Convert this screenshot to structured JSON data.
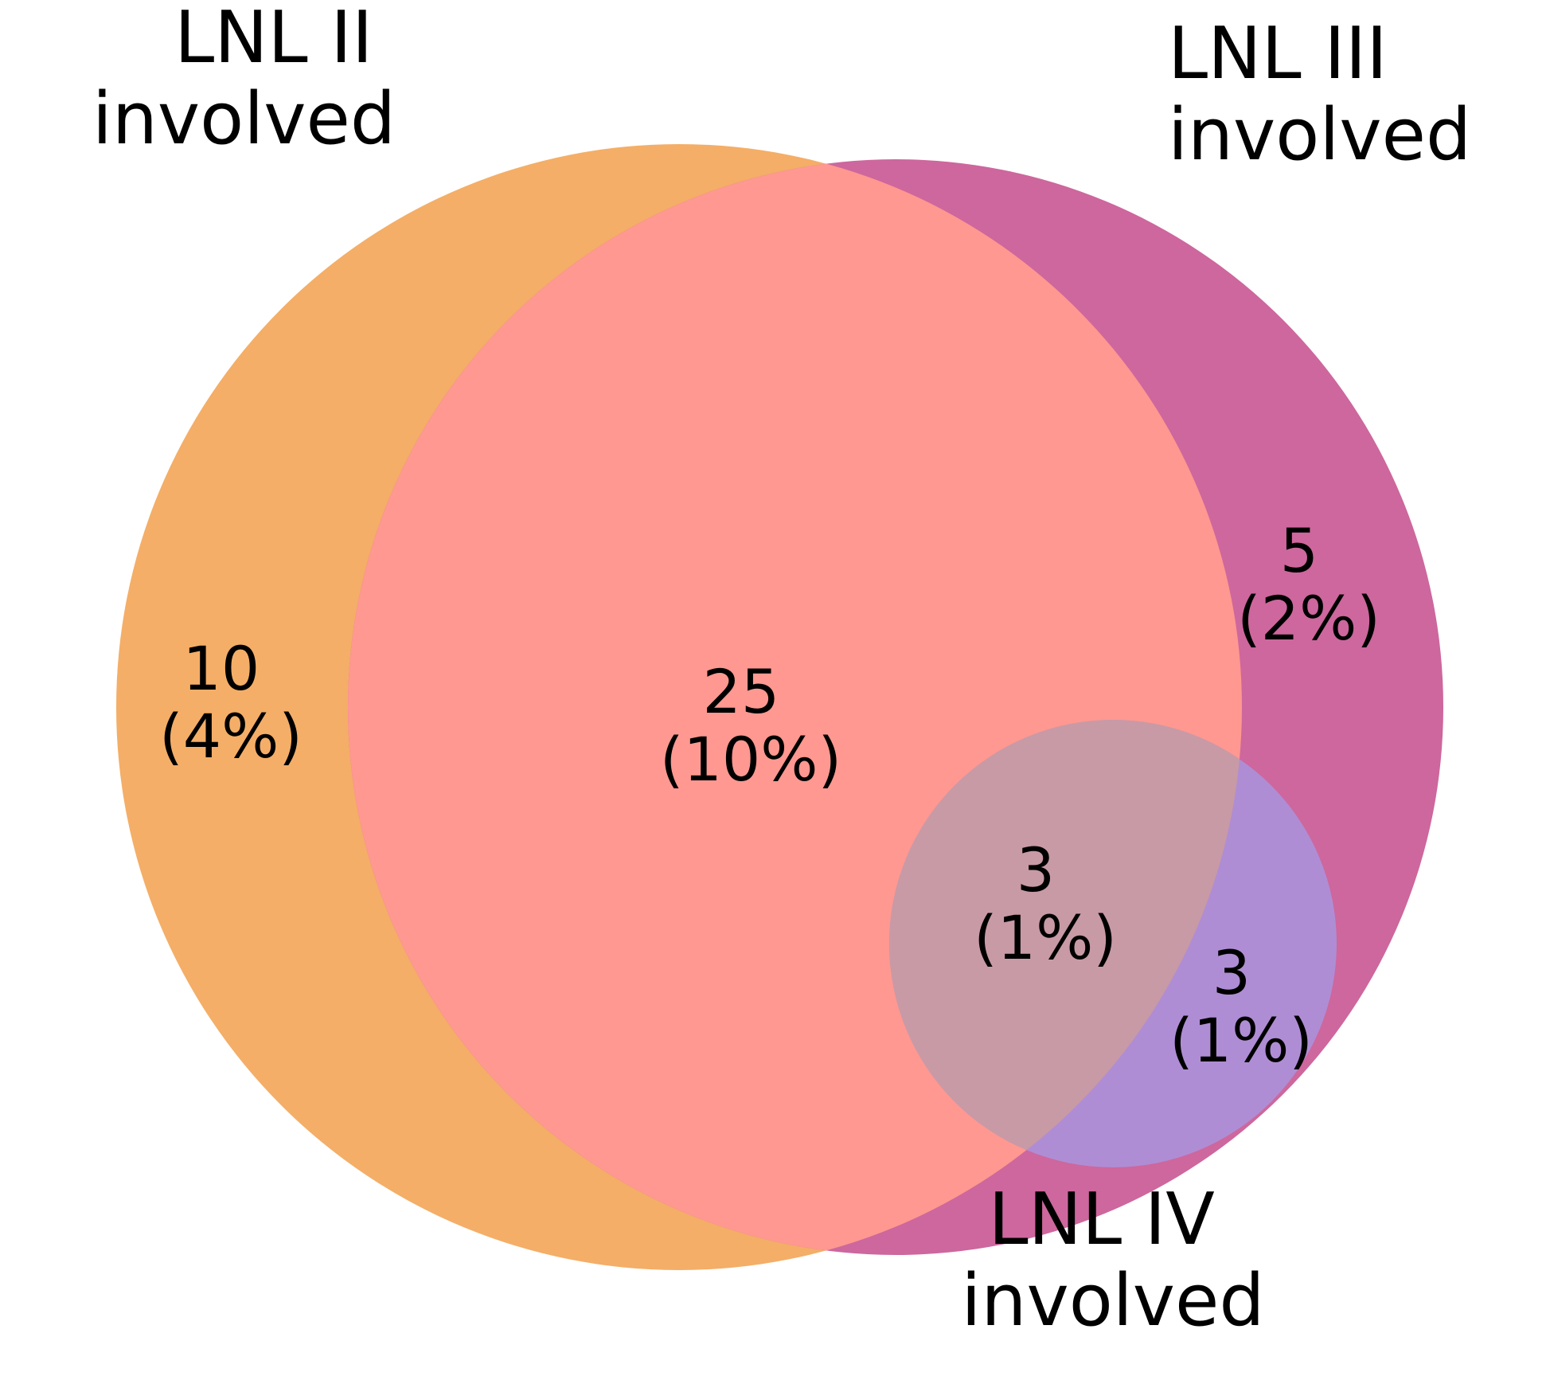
{
  "diagram": {
    "type": "venn3",
    "sets": [
      {
        "key": "lnl2",
        "line1": "LNL II",
        "line2": "involved",
        "color": "#F4AE67"
      },
      {
        "key": "lnl3",
        "line1": "LNL III",
        "line2": "involved",
        "color": "#CD679D"
      },
      {
        "key": "lnl4",
        "line1": "LNL IV",
        "line2": "involved",
        "color": "#AF8DD4"
      }
    ],
    "overlap_colors": {
      "lnl2_lnl3": "#FE9890",
      "lnl2_lnl3_lnl4": "#C89AA5"
    },
    "regions": [
      {
        "key": "lnl2_only",
        "count": "10",
        "percent": "(4%)"
      },
      {
        "key": "lnl2_lnl3",
        "count": "25",
        "percent": "(10%)"
      },
      {
        "key": "lnl3_only",
        "count": "5",
        "percent": "(2%)"
      },
      {
        "key": "lnl2_lnl3_lnl4",
        "count": "3",
        "percent": "(1%)"
      },
      {
        "key": "lnl3_lnl4",
        "count": "3",
        "percent": "(1%)"
      }
    ]
  }
}
